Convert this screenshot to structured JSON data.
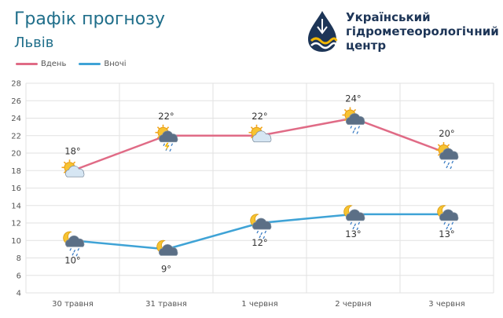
{
  "header": {
    "title": "Графік прогнозу",
    "city": "Львів"
  },
  "logo": {
    "line1": "Український",
    "line2": "гідрометеорологічний",
    "line3": "центр"
  },
  "colors": {
    "day": "#e06b86",
    "night": "#3fa3d6",
    "title": "#1f6e8a",
    "grid": "#e2e2e2"
  },
  "chart_data": {
    "type": "line",
    "categories": [
      "30 травня",
      "31 травня",
      "1 червня",
      "2 червня",
      "3 червня"
    ],
    "series": [
      {
        "name": "Вдень",
        "values": [
          18,
          22,
          22,
          24,
          20
        ],
        "labels": [
          "18°",
          "22°",
          "22°",
          "24°",
          "20°"
        ],
        "icons": [
          "sun-cloud-icon",
          "sun-storm-rain-icon",
          "sun-cloud-icon",
          "sun-rain-icon",
          "sun-rain-icon"
        ]
      },
      {
        "name": "Вночі",
        "values": [
          10,
          9,
          12,
          13,
          13
        ],
        "labels": [
          "10°",
          "9°",
          "12°",
          "13°",
          "13°"
        ],
        "icons": [
          "moon-rain-icon",
          "moon-cloud-icon",
          "moon-rain-icon",
          "moon-rain-icon",
          "moon-rain-icon"
        ]
      }
    ],
    "ylim": [
      4,
      28
    ],
    "yticks": [
      4,
      6,
      8,
      10,
      12,
      14,
      16,
      18,
      20,
      22,
      24,
      26,
      28
    ],
    "grid": true,
    "legend_position": "top-left"
  }
}
